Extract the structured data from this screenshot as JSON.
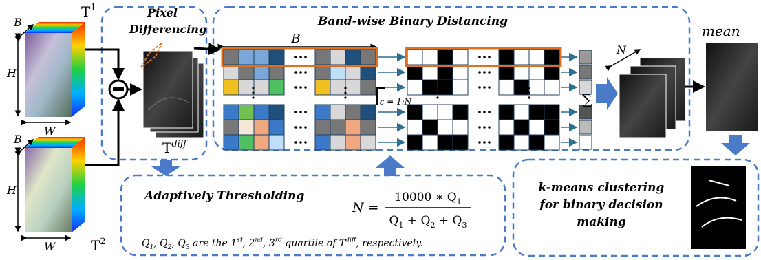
{
  "inputs": [
    {
      "band": "B",
      "height": "H",
      "width": "W",
      "label": [
        {
          "text": "T"
        },
        {
          "sup": "1"
        }
      ]
    },
    {
      "band": "B",
      "height": "H",
      "width": "W",
      "label": [
        {
          "text": "T"
        },
        {
          "sup": "2"
        }
      ]
    }
  ],
  "pixel_differencing": {
    "title": [
      "Pixel",
      "Differencing"
    ],
    "output": [
      {
        "text": "T"
      },
      {
        "sup": "diff"
      }
    ]
  },
  "band_wise": {
    "title": "Band-wise Binary Distancing",
    "band_label": "B",
    "epsilon": "ε = 1:N",
    "sum": "∑",
    "stack_label": "N"
  },
  "mean": "mean",
  "thresholding": {
    "title": "Adaptively Thresholding",
    "formula": {
      "lhs": "N =",
      "numerator": [
        {
          "text": "10000 ∗ Q"
        },
        {
          "sub": "1"
        }
      ],
      "denominator": [
        {
          "text": "Q"
        },
        {
          "sub": "1"
        },
        {
          "text": " + Q"
        },
        {
          "sub": "2"
        },
        {
          "text": " + Q"
        },
        {
          "sub": "3"
        }
      ]
    },
    "note": [
      {
        "text": "Q"
      },
      {
        "sub": "1"
      },
      {
        "text": ", Q"
      },
      {
        "sub": "2"
      },
      {
        "text": ", Q"
      },
      {
        "sub": "3"
      },
      {
        "text": " are the 1"
      },
      {
        "sup": "st"
      },
      {
        "text": ", 2"
      },
      {
        "sup": "nd"
      },
      {
        "text": ", 3"
      },
      {
        "sup": "rd"
      },
      {
        "text": " quartile of T"
      },
      {
        "sup": "diff"
      },
      {
        "text": ", respectively."
      }
    ]
  },
  "kmeans": [
    "k-means clustering",
    "for binary decision",
    "making"
  ]
}
